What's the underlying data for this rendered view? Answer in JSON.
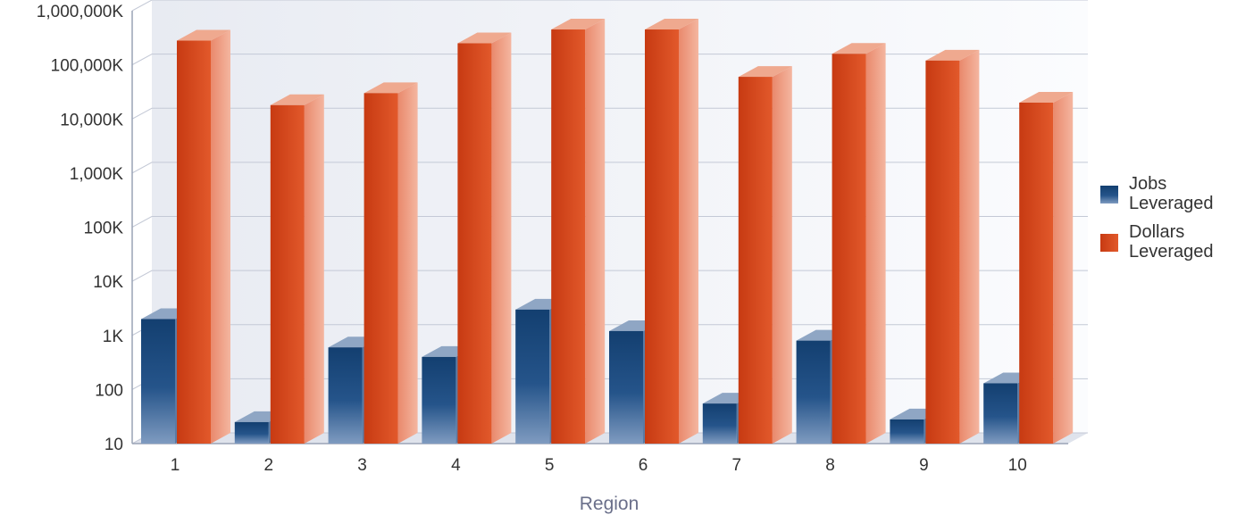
{
  "chart_data": {
    "type": "bar",
    "three_d": true,
    "yscale": "log",
    "ylim": [
      10,
      1000000000
    ],
    "yticks": [
      10,
      100,
      1000,
      10000,
      100000,
      1000000,
      10000000,
      100000000,
      1000000000
    ],
    "ytick_labels": [
      "10",
      "100",
      "1K",
      "10K",
      "100K",
      "1,000K",
      "10,000K",
      "100,000K",
      "1,000,000K"
    ],
    "grid": true,
    "xlabel": "Region",
    "ylabel": "",
    "title": "",
    "categories": [
      "1",
      "2",
      "3",
      "4",
      "5",
      "6",
      "7",
      "8",
      "9",
      "10"
    ],
    "legend_position": "right",
    "series": [
      {
        "name": "Jobs Leveraged",
        "legend_lines": [
          "Jobs",
          "Leveraged"
        ],
        "color": "#1f4e80",
        "values": [
          2000,
          25,
          600,
          400,
          3000,
          1200,
          55,
          800,
          28,
          130
        ]
      },
      {
        "name": "Dollars Leveraged",
        "legend_lines": [
          "Dollars",
          "Leveraged"
        ],
        "color": "#d9481c",
        "values": [
          280000000,
          18000000,
          30000000,
          250000000,
          450000000,
          450000000,
          60000000,
          160000000,
          120000000,
          20000000
        ]
      }
    ]
  }
}
